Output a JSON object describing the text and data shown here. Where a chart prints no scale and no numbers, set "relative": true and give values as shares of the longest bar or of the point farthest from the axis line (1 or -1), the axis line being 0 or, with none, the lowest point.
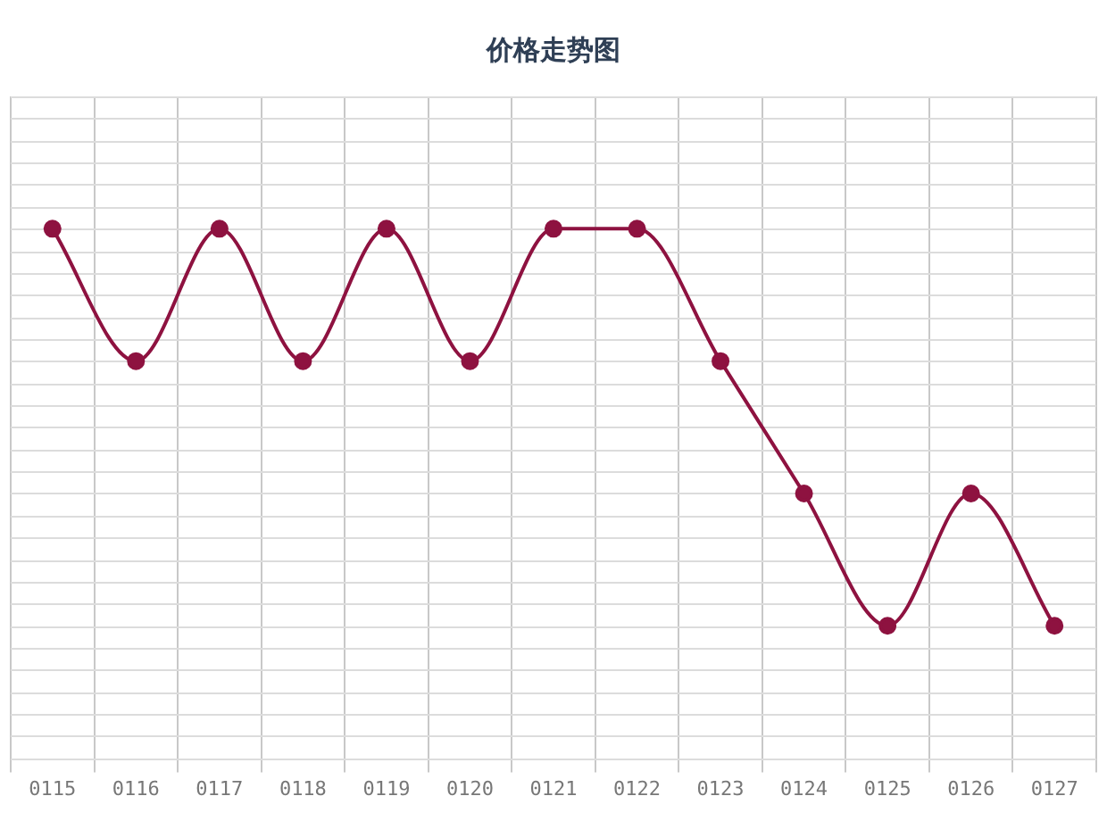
{
  "chart_data": {
    "type": "line",
    "title": "价格走势图",
    "relative": true,
    "categories": [
      "0115",
      "0116",
      "0117",
      "0118",
      "0119",
      "0120",
      "0121",
      "0122",
      "0123",
      "0124",
      "0125",
      "0126",
      "0127"
    ],
    "series": [
      {
        "color": "#8e1240",
        "values": [
          1,
          0.75,
          1,
          0.75,
          1,
          0.75,
          1,
          1,
          0.75,
          0.5,
          0.25,
          0.5,
          0.25
        ]
      }
    ],
    "grid": true,
    "legend": false,
    "marker": "circle",
    "line_style": "solid"
  }
}
